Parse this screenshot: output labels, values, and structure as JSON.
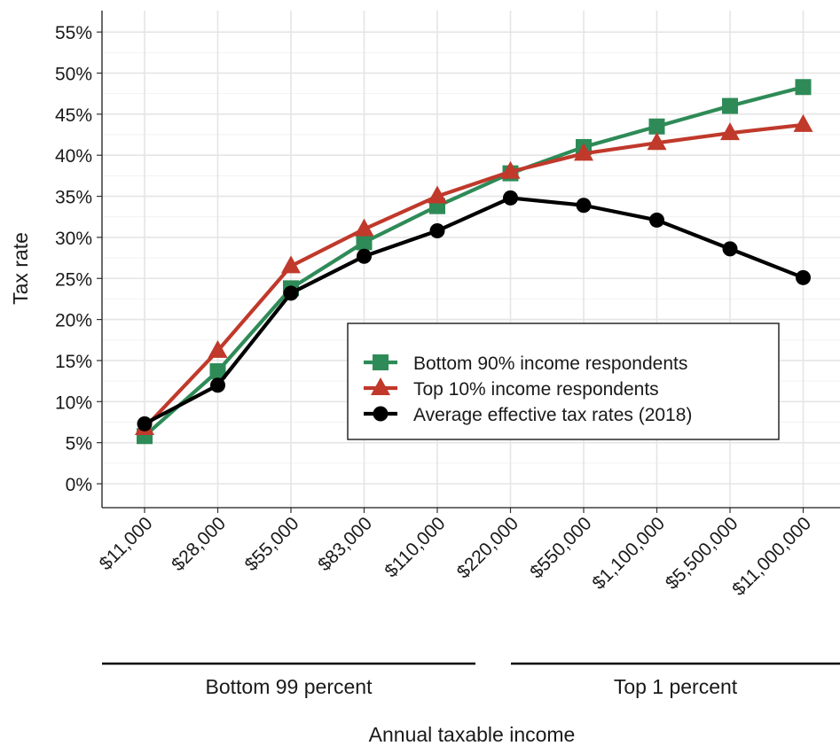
{
  "chart_data": {
    "type": "line",
    "xlabel": "Annual taxable income",
    "ylabel": "Tax rate",
    "categories": [
      "$11,000",
      "$28,000",
      "$55,000",
      "$83,000",
      "$110,000",
      "$220,000",
      "$550,000",
      "$1,100,000",
      "$5,500,000",
      "$11,000,000"
    ],
    "ylim": [
      0,
      55
    ],
    "yticks": [
      0,
      5,
      10,
      15,
      20,
      25,
      30,
      35,
      40,
      45,
      50,
      55
    ],
    "ytick_labels": [
      "0%",
      "5%",
      "10%",
      "15%",
      "20%",
      "25%",
      "30%",
      "35%",
      "40%",
      "45%",
      "50%",
      "55%"
    ],
    "grid": true,
    "legend_position": "center-right",
    "series": [
      {
        "name": "Bottom 90% income respondents",
        "color": "#2e8b57",
        "marker": "square",
        "values": [
          5.8,
          13.7,
          23.8,
          29.4,
          33.8,
          37.8,
          41.0,
          43.5,
          46.0,
          48.3
        ]
      },
      {
        "name": "Top 10% income respondents",
        "color": "#c0392b",
        "marker": "triangle",
        "values": [
          6.8,
          16.2,
          26.5,
          31.0,
          35.0,
          38.0,
          40.2,
          41.5,
          42.7,
          43.7
        ]
      },
      {
        "name": "Average effective tax rates (2018)",
        "color": "#000000",
        "marker": "circle",
        "values": [
          7.3,
          12.0,
          23.2,
          27.7,
          30.8,
          34.8,
          33.9,
          32.1,
          28.6,
          25.1
        ]
      }
    ],
    "groups": [
      {
        "label": "Bottom 99 percent"
      },
      {
        "label": "Top 1 percent"
      }
    ]
  }
}
